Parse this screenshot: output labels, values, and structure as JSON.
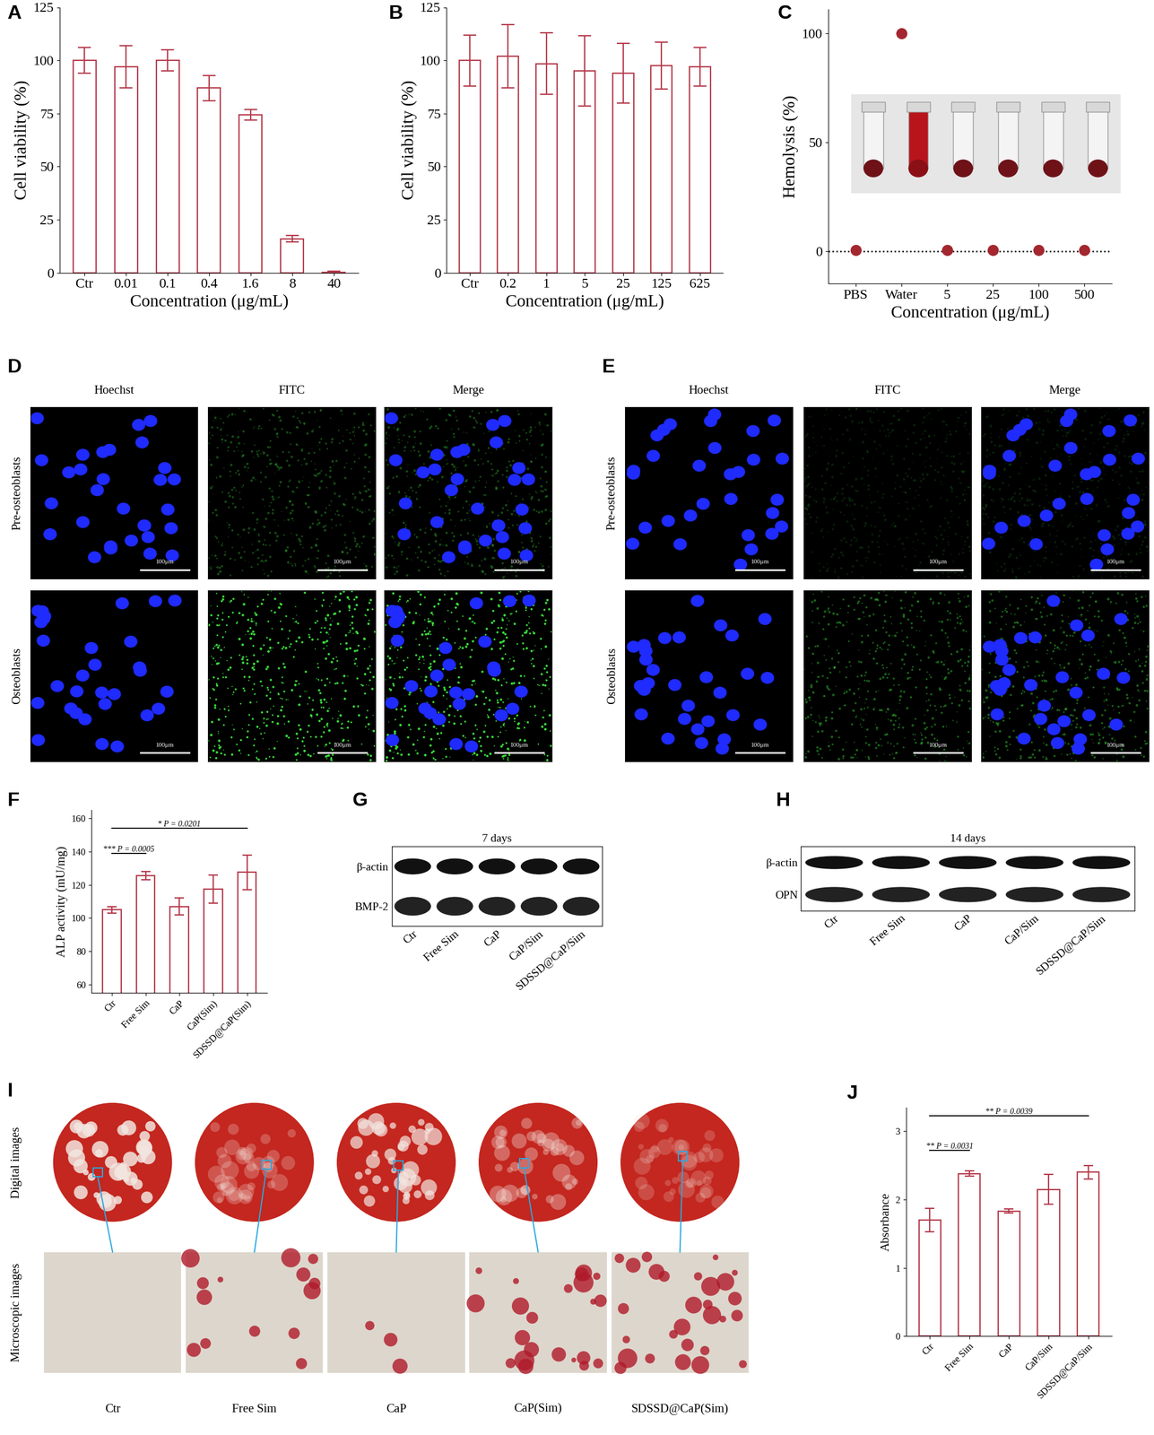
{
  "chart_data": [
    {
      "panel_label": "A",
      "type": "bar",
      "categories": [
        "Ctr",
        "0.01",
        "0.1",
        "0.4",
        "1.6",
        "8",
        "40"
      ],
      "values": [
        100,
        97,
        100,
        87,
        74.5,
        16,
        0.3
      ],
      "errors": [
        6,
        10,
        5,
        6,
        2.5,
        1.5,
        0.4
      ],
      "color": "#b5394a",
      "x_label": "Concentration (μg/mL)",
      "y_label": "Cell viability (%)",
      "ylim": [
        0,
        125
      ],
      "yticks": [
        0,
        25,
        50,
        75,
        100,
        125
      ]
    },
    {
      "panel_label": "B",
      "type": "bar",
      "categories": [
        "Ctr",
        "0.2",
        "1",
        "5",
        "25",
        "125",
        "625"
      ],
      "values": [
        100,
        102,
        98.5,
        95,
        94,
        97.5,
        97
      ],
      "errors": [
        12,
        15,
        14.5,
        16.5,
        14,
        11,
        9
      ],
      "color": "#b5394a",
      "x_label": "Concentration (μg/mL)",
      "y_label": "Cell viability (%)",
      "ylim": [
        0,
        125
      ],
      "yticks": [
        0,
        25,
        50,
        75,
        100,
        125
      ]
    },
    {
      "panel_label": "C",
      "type": "scatter",
      "marker": "o",
      "categories": [
        "PBS",
        "Water",
        "5",
        "25",
        "100",
        "500"
      ],
      "values": [
        0.5,
        100,
        0.3,
        0.3,
        0.4,
        0.4
      ],
      "reference_line": 0,
      "color": "#a3272f",
      "x_label": "Concentration (μg/mL)",
      "y_label": "Hemolysis (%)",
      "ylim": [
        -15,
        111
      ],
      "yticks": [
        0,
        50,
        100
      ]
    },
    {
      "panel_label": "F",
      "type": "bar",
      "categories": [
        "Ctr",
        "Free Sim",
        "CaP",
        "CaP(Sim)",
        "SDSSD@CaP(Sim)"
      ],
      "values": [
        105,
        125.5,
        107,
        117.5,
        127.5
      ],
      "errors": [
        2,
        2.5,
        5,
        8.5,
        10.5
      ],
      "color": "#b5394a",
      "y_label": "ALP activity (mU/mg)",
      "ylim": [
        55,
        165
      ],
      "yticks": [
        60,
        80,
        100,
        120,
        140,
        160
      ],
      "annotations": [
        {
          "text": "*** P = 0.0005",
          "from": 0,
          "to": 1,
          "y": 139
        },
        {
          "text": "* P = 0.0201",
          "from": 0,
          "to": 4,
          "y": 154
        }
      ]
    },
    {
      "panel_label": "J",
      "type": "bar",
      "categories": [
        "Ctr",
        "Free Sim",
        "CaP",
        "CaP/Sim",
        "SDSSD@CaP/Sim"
      ],
      "values": [
        1.7,
        2.38,
        1.83,
        2.15,
        2.4
      ],
      "errors": [
        0.17,
        0.04,
        0.03,
        0.22,
        0.1
      ],
      "color": "#b5394a",
      "y_label": "Absorbance",
      "ylim": [
        0,
        3.35
      ],
      "yticks": [
        0,
        1,
        2,
        3
      ],
      "annotations": [
        {
          "text": "** P = 0.0031",
          "from": 0,
          "to": 1,
          "y": 2.72
        },
        {
          "text": "** P = 0.0039",
          "from": 0,
          "to": 4,
          "y": 3.23
        }
      ]
    }
  ],
  "fluorescence_panels": [
    {
      "panel_label": "D",
      "channels": [
        "Hoechst",
        "FITC",
        "Merge"
      ],
      "rows": [
        "Pre-osteoblasts",
        "Osteoblasts"
      ],
      "scale_bar": "100μm"
    },
    {
      "panel_label": "E",
      "channels": [
        "Hoechst",
        "FITC",
        "Merge"
      ],
      "rows": [
        "Pre-osteoblasts",
        "Osteoblasts"
      ],
      "scale_bar": "100μm"
    }
  ],
  "western_blots": [
    {
      "panel_label": "G",
      "title": "7 days",
      "rows": [
        "β-actin",
        "BMP-2"
      ],
      "categories": [
        "Ctr",
        "Free Sim",
        "CaP",
        "CaP/Sim",
        "SDSSD@CaP/Sim"
      ]
    },
    {
      "panel_label": "H",
      "title": "14 days",
      "rows": [
        "β-actin",
        "OPN"
      ],
      "categories": [
        "Ctr",
        "Free Sim",
        "CaP",
        "CaP/Sim",
        "SDSSD@CaP/Sim"
      ]
    }
  ],
  "staining": {
    "panel_label": "I",
    "rows": [
      "Digital images",
      "Microscopic images"
    ],
    "categories": [
      "Ctr",
      "Free Sim",
      "CaP",
      "CaP(Sim)",
      "SDSSD@CaP(Sim)"
    ]
  }
}
